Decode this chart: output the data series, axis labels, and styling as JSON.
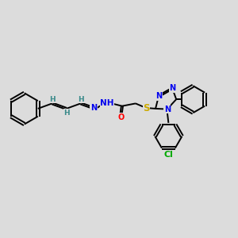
{
  "background_color": "#dcdcdc",
  "fig_size": [
    3.0,
    3.0
  ],
  "dpi": 100,
  "bond_color": "#000000",
  "bond_lw": 1.4,
  "atom_colors": {
    "N": "#0000ee",
    "O": "#ff0000",
    "S": "#ccaa00",
    "Cl": "#00aa00",
    "H": "#3a8a8a",
    "C": "#000000"
  },
  "font_size": 7.0
}
